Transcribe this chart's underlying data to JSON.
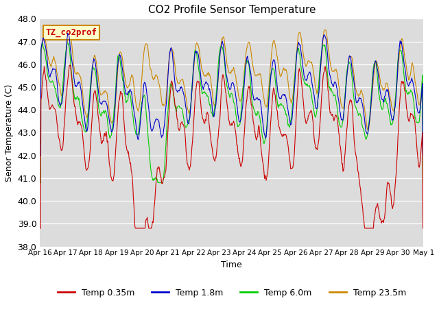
{
  "title": "CO2 Profile Sensor Temperature",
  "xlabel": "Time",
  "ylabel": "Senor Temperature (C)",
  "ylim": [
    38.0,
    48.0
  ],
  "yticks": [
    38.0,
    39.0,
    40.0,
    41.0,
    42.0,
    43.0,
    44.0,
    45.0,
    46.0,
    47.0,
    48.0
  ],
  "xtick_labels": [
    "Apr 16",
    "Apr 17",
    "Apr 18",
    "Apr 19",
    "Apr 20",
    "Apr 21",
    "Apr 22",
    "Apr 23",
    "Apr 24",
    "Apr 25",
    "Apr 26",
    "Apr 27",
    "Apr 28",
    "Apr 29",
    "Apr 30",
    "May 1"
  ],
  "colors": {
    "temp_035": "#cc0000",
    "temp_18": "#0000cc",
    "temp_60": "#00cc00",
    "temp_235": "#cc8800"
  },
  "legend_labels": [
    "Temp 0.35m",
    "Temp 1.8m",
    "Temp 6.0m",
    "Temp 23.5m"
  ],
  "annotation_text": "TZ_co2prof",
  "annotation_color": "#cc0000",
  "annotation_bg": "#ffffcc",
  "annotation_border": "#cc8800",
  "background_color": "#dcdcdc",
  "title_fontsize": 11,
  "axis_fontsize": 9,
  "legend_fontsize": 9,
  "n_points": 720
}
